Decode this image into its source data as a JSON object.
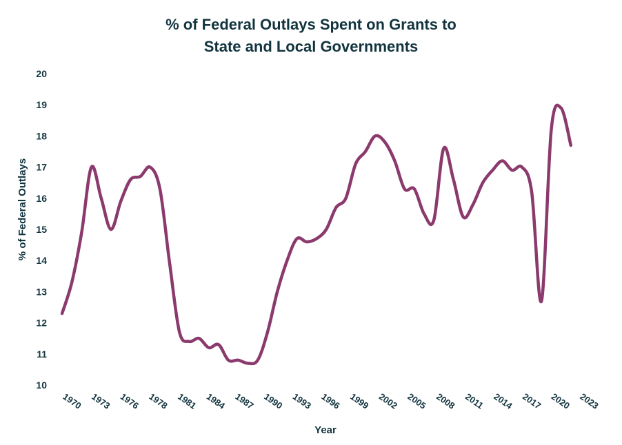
{
  "chart_data": {
    "type": "line",
    "title": [
      "% of Federal Outlays Spent on Grants to",
      "State and Local Governments"
    ],
    "xlabel": "Year",
    "ylabel": "% of Federal Outlays",
    "ylim": [
      10,
      20
    ],
    "yticks": [
      10,
      11,
      12,
      13,
      14,
      15,
      16,
      17,
      18,
      19,
      20
    ],
    "xlim": [
      1970,
      2023
    ],
    "xtick_labels": [
      "1970",
      "1973",
      "1976",
      "1978",
      "1981",
      "1984",
      "1987",
      "1990",
      "1993",
      "1996",
      "1999",
      "2002",
      "2005",
      "2008",
      "2011",
      "2014",
      "2017",
      "2020",
      "2023"
    ],
    "grid": false,
    "legend": "none",
    "series": [
      {
        "name": "% of Federal Outlays",
        "color": "#8b3a6d",
        "x": [
          1970,
          1971,
          1972,
          1973,
          1974,
          1975,
          1976,
          1977,
          1978,
          1979,
          1980,
          1981,
          1982,
          1983,
          1984,
          1985,
          1986,
          1987,
          1988,
          1989,
          1990,
          1991,
          1992,
          1993,
          1994,
          1995,
          1996,
          1997,
          1998,
          1999,
          2000,
          2001,
          2002,
          2003,
          2004,
          2005,
          2006,
          2007,
          2008,
          2009,
          2010,
          2011,
          2012,
          2013,
          2014,
          2015,
          2016,
          2017,
          2018,
          2019,
          2020,
          2021,
          2022
        ],
        "values": [
          12.3,
          13.3,
          14.9,
          17.0,
          16.0,
          15.0,
          15.9,
          16.6,
          16.7,
          17.0,
          16.3,
          13.9,
          11.7,
          11.4,
          11.5,
          11.2,
          11.3,
          10.8,
          10.8,
          10.7,
          10.8,
          11.7,
          13.0,
          14.0,
          14.7,
          14.6,
          14.7,
          15.0,
          15.7,
          16.0,
          17.1,
          17.5,
          18.0,
          17.8,
          17.2,
          16.3,
          16.3,
          15.5,
          15.3,
          17.6,
          16.6,
          15.4,
          15.8,
          16.5,
          16.9,
          17.2,
          16.9,
          17.0,
          16.2,
          12.7,
          18.2,
          18.9,
          17.7
        ]
      }
    ]
  }
}
